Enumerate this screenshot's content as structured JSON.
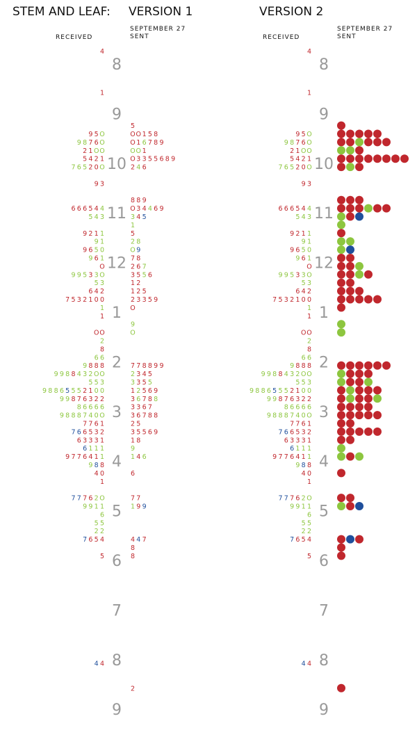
{
  "title": "STEM AND LEAF:",
  "version_1": "VERSION 1",
  "version_2": "VERSION 2",
  "received_label": "RECEIVED",
  "sent_date": "SEPTEMBER 27",
  "sent_label": "SENT",
  "colors": {
    "r": "#c0272d",
    "g": "#8dc63f",
    "b": "#1f4f9c"
  },
  "stems": [
    8,
    9,
    10,
    11,
    12,
    1,
    2,
    3,
    4,
    5,
    6,
    7,
    8,
    9
  ],
  "rows": [
    {
      "received": {
        "leaves": "4",
        "colors": "r"
      }
    },
    null,
    null,
    null,
    null,
    {
      "received": {
        "leaves": "1",
        "colors": "r"
      }
    },
    null,
    null,
    null,
    {
      "sent": {
        "leaves": "5",
        "colors": "r"
      }
    },
    {
      "received": {
        "leaves": "95O",
        "colors": "rrg"
      },
      "sent": {
        "leaves": "OO158",
        "colors": "rrrrr"
      }
    },
    {
      "received": {
        "leaves": "9876O",
        "colors": "ggrrg"
      },
      "sent": {
        "leaves": "O16789",
        "colors": "rrgrrr"
      }
    },
    {
      "received": {
        "leaves": "21OO",
        "colors": "rrgg"
      },
      "sent": {
        "leaves": "OO1",
        "colors": "ggr"
      }
    },
    {
      "received": {
        "leaves": "5421",
        "colors": "rrrr"
      },
      "sent": {
        "leaves": "O3355689",
        "colors": "rrrrrrrr"
      }
    },
    {
      "received": {
        "leaves": "76520O",
        "colors": "gggrrg"
      },
      "sent": {
        "leaves": "246",
        "colors": "rgr"
      }
    },
    null,
    {
      "received": {
        "leaves": "93",
        "colors": "rr"
      }
    },
    null,
    {
      "sent": {
        "leaves": "889",
        "colors": "rrr"
      }
    },
    {
      "received": {
        "leaves": "666544",
        "colors": "rrrrrg"
      },
      "sent": {
        "leaves": "O34469",
        "colors": "rrrgrr"
      }
    },
    {
      "received": {
        "leaves": "543",
        "colors": "ggg"
      },
      "sent": {
        "leaves": "345",
        "colors": "grb"
      }
    },
    {
      "sent": {
        "leaves": "1",
        "colors": "g"
      }
    },
    {
      "received": {
        "leaves": "9211",
        "colors": "rrrg"
      },
      "sent": {
        "leaves": "5",
        "colors": "r"
      }
    },
    {
      "received": {
        "leaves": "91",
        "colors": "gg"
      },
      "sent": {
        "leaves": "28",
        "colors": "gg"
      }
    },
    {
      "received": {
        "leaves": "9650",
        "colors": "rrgg"
      },
      "sent": {
        "leaves": "O9",
        "colors": "gb"
      }
    },
    {
      "received": {
        "leaves": "961",
        "colors": "grg"
      },
      "sent": {
        "leaves": "78",
        "colors": "rr"
      }
    },
    {
      "received": {
        "leaves": "O",
        "colors": "r"
      },
      "sent": {
        "leaves": "267",
        "colors": "rrg"
      }
    },
    {
      "received": {
        "leaves": "99533O",
        "colors": "gggrgg"
      },
      "sent": {
        "leaves": "3556",
        "colors": "rrgr"
      }
    },
    {
      "received": {
        "leaves": "53",
        "colors": "gg"
      },
      "sent": {
        "leaves": "12",
        "colors": "rr"
      }
    },
    {
      "received": {
        "leaves": "642",
        "colors": "rrr"
      },
      "sent": {
        "leaves": "125",
        "colors": "rrr"
      }
    },
    {
      "received": {
        "leaves": "7532100",
        "colors": "rrrrrrr"
      },
      "sent": {
        "leaves": "23359",
        "colors": "rrrrr"
      }
    },
    {
      "received": {
        "leaves": "1",
        "colors": "g"
      },
      "sent": {
        "leaves": "O",
        "colors": "r"
      }
    },
    {
      "received": {
        "leaves": "1",
        "colors": "r"
      }
    },
    {
      "sent": {
        "leaves": "9",
        "colors": "g"
      }
    },
    {
      "received": {
        "leaves": "OO",
        "colors": "rr"
      },
      "sent": {
        "leaves": "O",
        "colors": "g"
      }
    },
    {
      "received": {
        "leaves": "2",
        "colors": "g"
      }
    },
    {
      "received": {
        "leaves": "8",
        "colors": "r"
      }
    },
    {
      "received": {
        "leaves": "66",
        "colors": "gg"
      }
    },
    {
      "received": {
        "leaves": "9888",
        "colors": "grrr"
      },
      "sent": {
        "leaves": "778899",
        "colors": "rrrrrr"
      }
    },
    {
      "received": {
        "leaves": "9988432OO",
        "colors": "gggrggggg"
      },
      "sent": {
        "leaves": "2345",
        "colors": "grrr"
      }
    },
    {
      "received": {
        "leaves": "553",
        "colors": "ggg"
      },
      "sent": {
        "leaves": "3355",
        "colors": "grrg"
      }
    },
    {
      "received": {
        "leaves": "98865552100",
        "colors": "ggggbggrrgg"
      },
      "sent": {
        "leaves": "12569",
        "colors": "rgrrr"
      }
    },
    {
      "received": {
        "leaves": "99876322",
        "colors": "ggrrrrrr"
      },
      "sent": {
        "leaves": "36788",
        "colors": "rgrrg"
      }
    },
    {
      "received": {
        "leaves": "86666",
        "colors": "ggggg"
      },
      "sent": {
        "leaves": "3367",
        "colors": "rrrr"
      }
    },
    {
      "received": {
        "leaves": "9888740O",
        "colors": "gggggggg"
      },
      "sent": {
        "leaves": "36788",
        "colors": "rrrrr"
      }
    },
    {
      "received": {
        "leaves": "7761",
        "colors": "rrrr"
      },
      "sent": {
        "leaves": "25",
        "colors": "rr"
      }
    },
    {
      "received": {
        "leaves": "766532",
        "colors": "bbrrrr"
      },
      "sent": {
        "leaves": "35569",
        "colors": "rrrrr"
      }
    },
    {
      "received": {
        "leaves": "63331",
        "colors": "rrrrr"
      },
      "sent": {
        "leaves": "18",
        "colors": "rr"
      }
    },
    {
      "received": {
        "leaves": "6111",
        "colors": "bggg"
      },
      "sent": {
        "leaves": "9",
        "colors": "g"
      }
    },
    {
      "received": {
        "leaves": "9776411",
        "colors": "rrrrrrg"
      },
      "sent": {
        "leaves": "146",
        "colors": "grg"
      }
    },
    {
      "received": {
        "leaves": "988",
        "colors": "gbr"
      }
    },
    {
      "received": {
        "leaves": "40",
        "colors": "rr"
      },
      "sent": {
        "leaves": "6",
        "colors": "r"
      }
    },
    {
      "received": {
        "leaves": "1",
        "colors": "r"
      }
    },
    null,
    {
      "received": {
        "leaves": "77762O",
        "colors": "bbrrgg"
      },
      "sent": {
        "leaves": "77",
        "colors": "rr"
      }
    },
    {
      "received": {
        "leaves": "9911",
        "colors": "gggg"
      },
      "sent": {
        "leaves": "199",
        "colors": "grb"
      }
    },
    {
      "received": {
        "leaves": "6",
        "colors": "g"
      }
    },
    {
      "received": {
        "leaves": "55",
        "colors": "gg"
      }
    },
    {
      "received": {
        "leaves": "22",
        "colors": "gg"
      }
    },
    {
      "received": {
        "leaves": "7654",
        "colors": "brrr"
      },
      "sent": {
        "leaves": "447",
        "colors": "rbr"
      }
    },
    {
      "sent": {
        "leaves": "8",
        "colors": "r"
      }
    },
    {
      "received": {
        "leaves": "5",
        "colors": "r"
      },
      "sent": {
        "leaves": "8",
        "colors": "r"
      }
    },
    null,
    null,
    null,
    null,
    null,
    null,
    null,
    null,
    null,
    null,
    null,
    null,
    {
      "received": {
        "leaves": "44",
        "colors": "br"
      }
    },
    null,
    null,
    {
      "sent": {
        "leaves": "2",
        "colors": "r"
      }
    }
  ]
}
